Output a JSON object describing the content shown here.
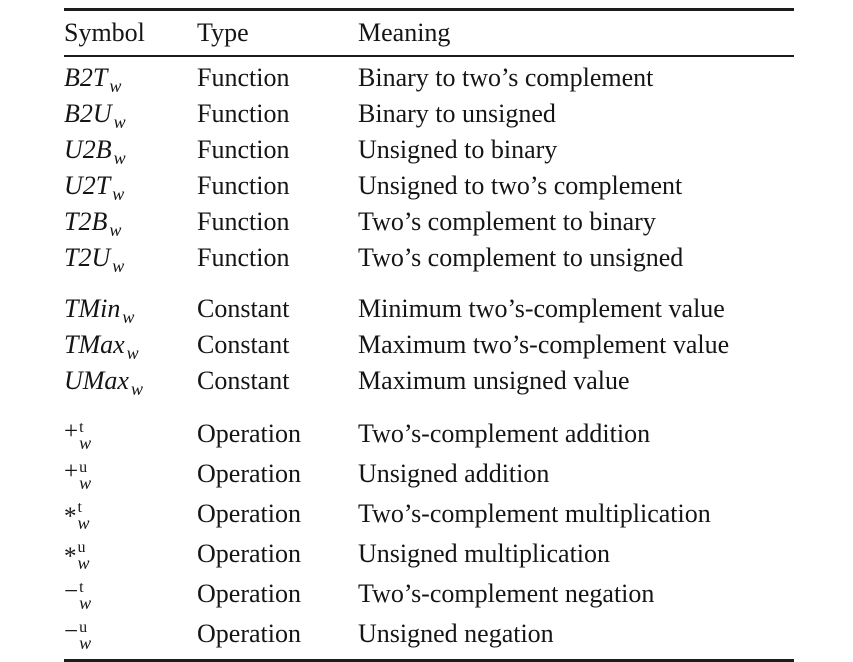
{
  "page": {
    "background": "#ffffff",
    "text_color": "#151515",
    "rule_color": "#1c1c1c"
  },
  "table": {
    "headers": [
      {
        "label": "Symbol"
      },
      {
        "label": "Type"
      },
      {
        "label": "Meaning"
      }
    ],
    "groups": [
      {
        "name": "functions",
        "rows": [
          {
            "symbol": {
              "base": "B2T",
              "sub": "w"
            },
            "type": "Function",
            "meaning": "Binary to two’s complement"
          },
          {
            "symbol": {
              "base": "B2U",
              "sub": "w"
            },
            "type": "Function",
            "meaning": "Binary to unsigned"
          },
          {
            "symbol": {
              "base": "U2B",
              "sub": "w"
            },
            "type": "Function",
            "meaning": "Unsigned to binary"
          },
          {
            "symbol": {
              "base": "U2T",
              "sub": "w"
            },
            "type": "Function",
            "meaning": "Unsigned to two’s complement"
          },
          {
            "symbol": {
              "base": "T2B",
              "sub": "w"
            },
            "type": "Function",
            "meaning": "Two’s complement to binary"
          },
          {
            "symbol": {
              "base": "T2U",
              "sub": "w"
            },
            "type": "Function",
            "meaning": "Two’s complement to unsigned"
          }
        ]
      },
      {
        "name": "constants",
        "rows": [
          {
            "symbol": {
              "base": "TMin",
              "sub": "w"
            },
            "type": "Constant",
            "meaning": "Minimum two’s-complement value"
          },
          {
            "symbol": {
              "base": "TMax",
              "sub": "w"
            },
            "type": "Constant",
            "meaning": "Maximum two’s-complement value"
          },
          {
            "symbol": {
              "base": "UMax",
              "sub": "w"
            },
            "type": "Constant",
            "meaning": "Maximum unsigned value"
          }
        ]
      },
      {
        "name": "operations",
        "rows": [
          {
            "symbol": {
              "stacked": true,
              "base": "+",
              "sup": "t",
              "sub": "w"
            },
            "type": "Operation",
            "meaning": "Two’s-complement addition"
          },
          {
            "symbol": {
              "stacked": true,
              "base": "+",
              "sup": "u",
              "sub": "w"
            },
            "type": "Operation",
            "meaning": "Unsigned addition"
          },
          {
            "symbol": {
              "stacked": true,
              "base": "*",
              "sup": "t",
              "sub": "w"
            },
            "type": "Operation",
            "meaning": "Two’s-complement multiplication"
          },
          {
            "symbol": {
              "stacked": true,
              "base": "*",
              "sup": "u",
              "sub": "w"
            },
            "type": "Operation",
            "meaning": "Unsigned multiplication"
          },
          {
            "symbol": {
              "stacked": true,
              "base": "−",
              "sup": "t",
              "sub": "w"
            },
            "type": "Operation",
            "meaning": "Two’s-complement negation"
          },
          {
            "symbol": {
              "stacked": true,
              "base": "−",
              "sup": "u",
              "sub": "w"
            },
            "type": "Operation",
            "meaning": "Unsigned negation"
          }
        ]
      }
    ]
  }
}
